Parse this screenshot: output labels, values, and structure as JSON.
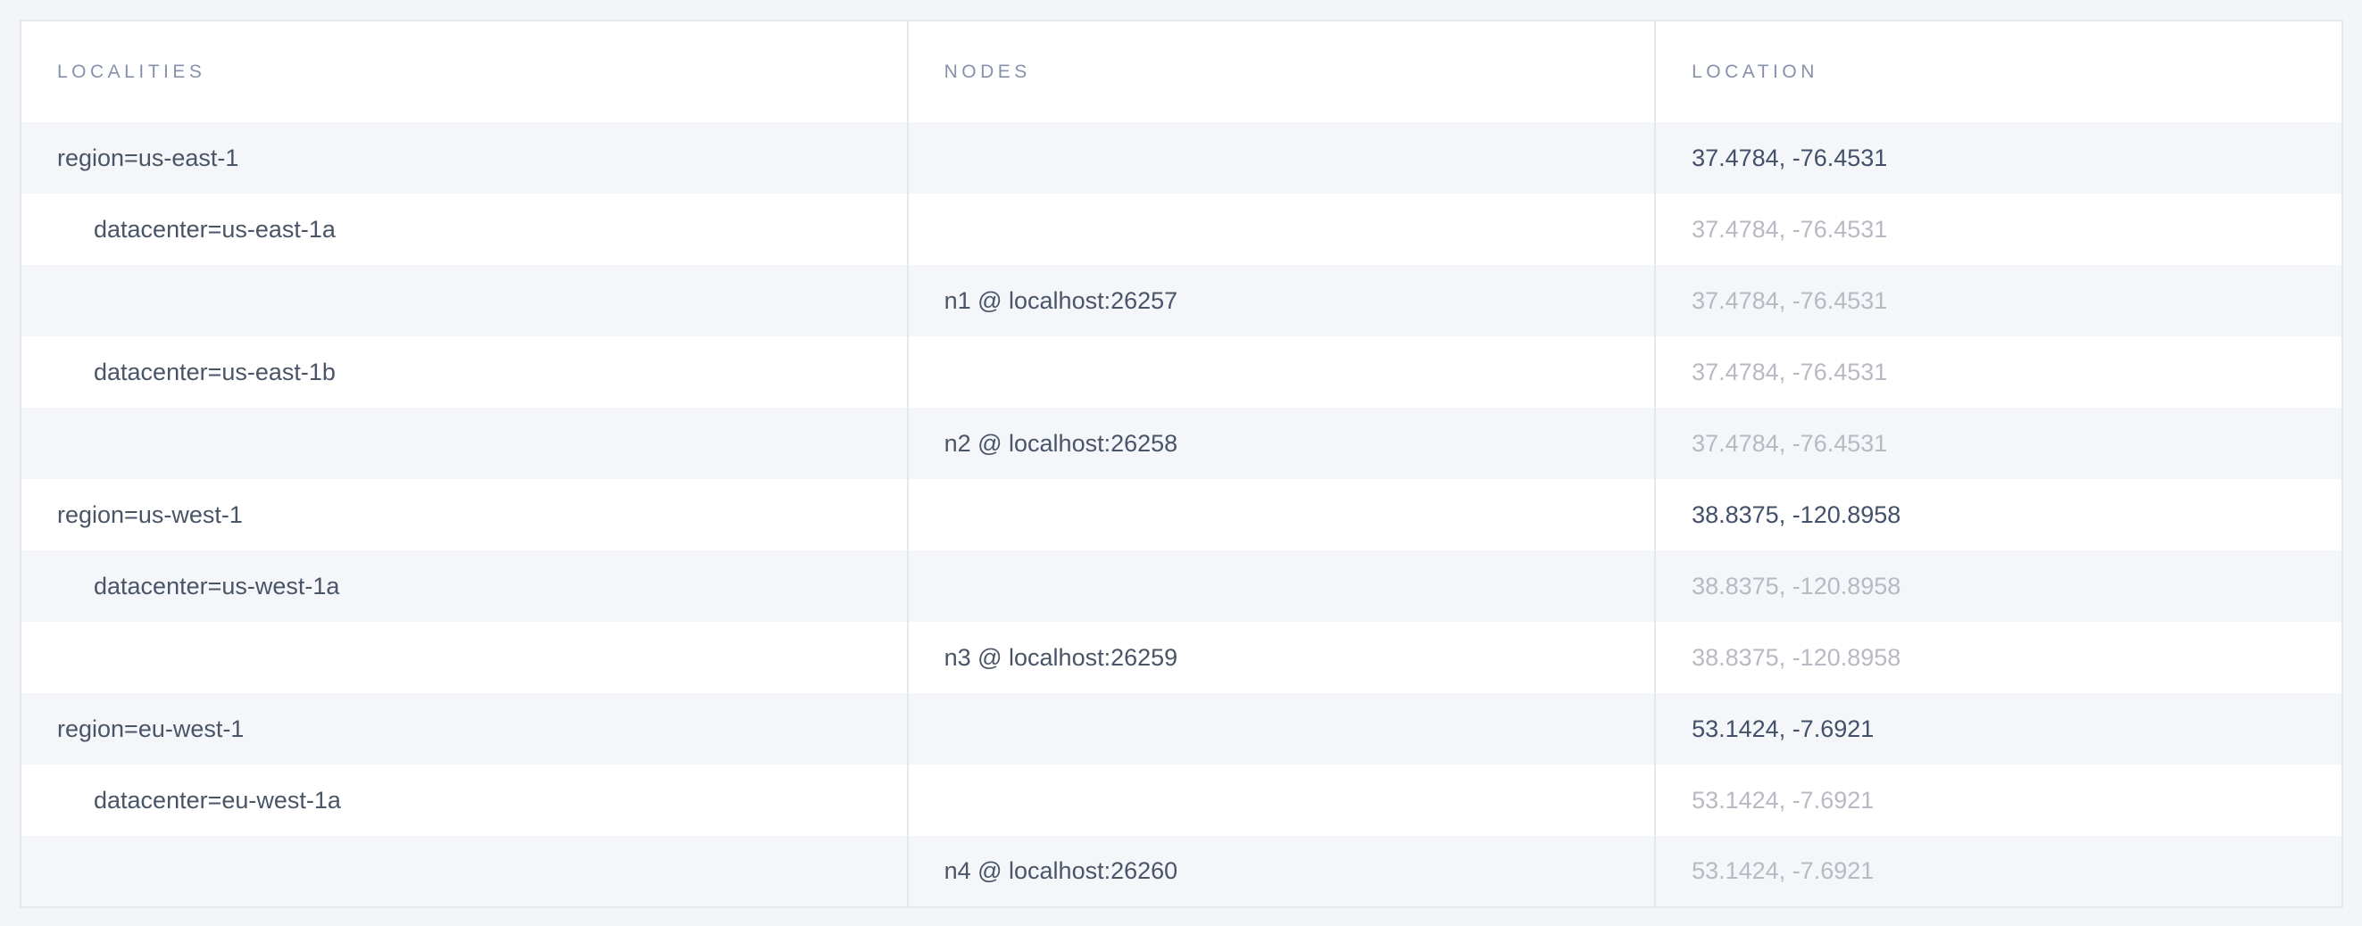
{
  "colors": {
    "page_background": "#f4f5f9",
    "header_background": "#ffffff",
    "row_odd_background": "#f5f6fa",
    "row_even_background": "#ffffff",
    "border": "#e3e8ef",
    "header_text": "#8791ab",
    "cell_text_dark": "#4a5467",
    "cell_text_dim": "#b7bac2"
  },
  "table": {
    "columns": [
      {
        "key": "localities",
        "label": "LOCALITIES"
      },
      {
        "key": "nodes",
        "label": "NODES"
      },
      {
        "key": "location",
        "label": "LOCATION"
      }
    ],
    "rows": [
      {
        "type": "region",
        "locality": "region=us-east-1",
        "node": "",
        "location": "37.4784, -76.4531",
        "location_emphasis": true
      },
      {
        "type": "datacenter",
        "locality": "datacenter=us-east-1a",
        "node": "",
        "location": "37.4784, -76.4531",
        "location_emphasis": false
      },
      {
        "type": "node",
        "locality": "",
        "node": "n1 @ localhost:26257",
        "location": "37.4784, -76.4531",
        "location_emphasis": false
      },
      {
        "type": "datacenter",
        "locality": "datacenter=us-east-1b",
        "node": "",
        "location": "37.4784, -76.4531",
        "location_emphasis": false
      },
      {
        "type": "node",
        "locality": "",
        "node": "n2 @ localhost:26258",
        "location": "37.4784, -76.4531",
        "location_emphasis": false
      },
      {
        "type": "region",
        "locality": "region=us-west-1",
        "node": "",
        "location": "38.8375, -120.8958",
        "location_emphasis": true
      },
      {
        "type": "datacenter",
        "locality": "datacenter=us-west-1a",
        "node": "",
        "location": "38.8375, -120.8958",
        "location_emphasis": false
      },
      {
        "type": "node",
        "locality": "",
        "node": "n3 @ localhost:26259",
        "location": "38.8375, -120.8958",
        "location_emphasis": false
      },
      {
        "type": "region",
        "locality": "region=eu-west-1",
        "node": "",
        "location": "53.1424, -7.6921",
        "location_emphasis": true
      },
      {
        "type": "datacenter",
        "locality": "datacenter=eu-west-1a",
        "node": "",
        "location": "53.1424, -7.6921",
        "location_emphasis": false
      },
      {
        "type": "node",
        "locality": "",
        "node": "n4 @ localhost:26260",
        "location": "53.1424, -7.6921",
        "location_emphasis": false
      }
    ]
  }
}
